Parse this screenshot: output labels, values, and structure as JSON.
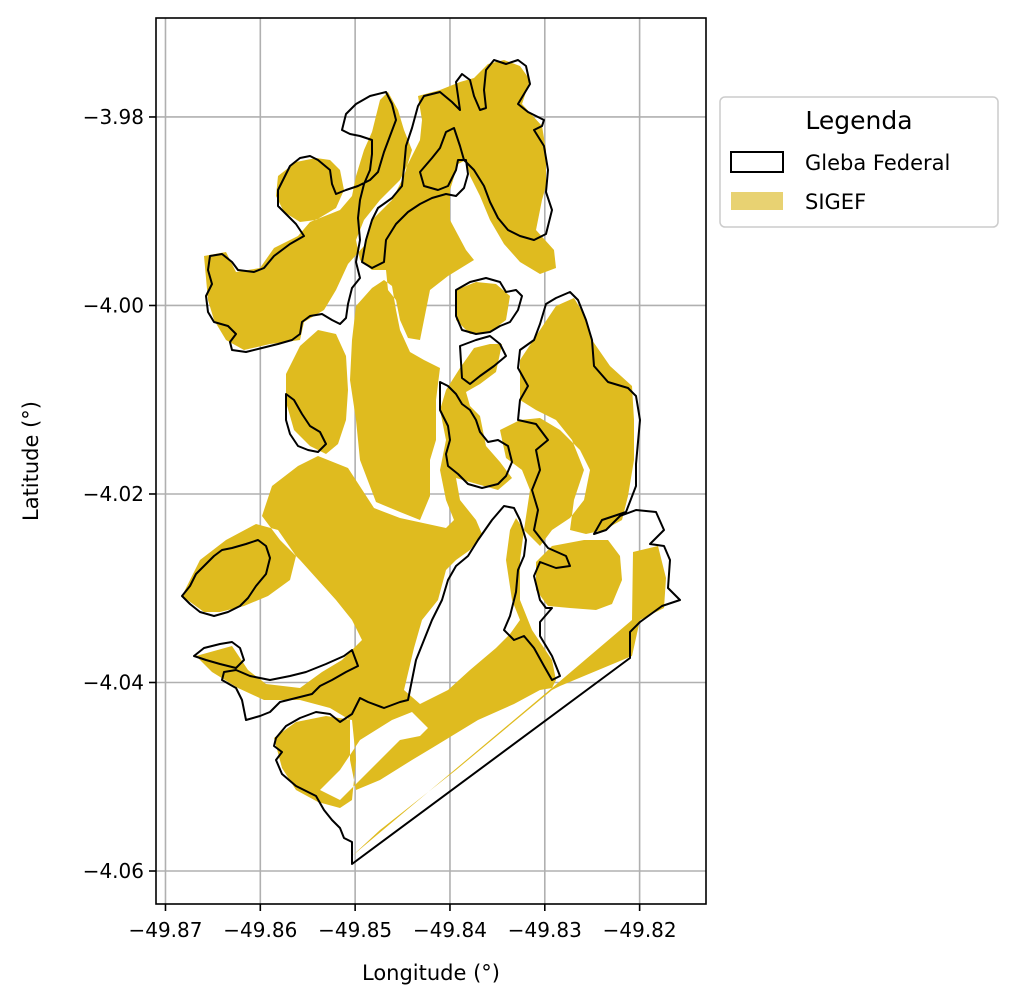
{
  "chart_data": {
    "type": "map",
    "xlabel": "Longitude (°)",
    "ylabel": "Latitude (°)",
    "xlim": [
      -49.871,
      -49.813
    ],
    "ylim": [
      -4.0635,
      -3.9695
    ],
    "x_ticks": [
      -49.87,
      -49.86,
      -49.85,
      -49.84,
      -49.83,
      -49.82
    ],
    "x_tick_labels": [
      "−49.87",
      "−49.86",
      "−49.85",
      "−49.84",
      "−49.83",
      "−49.82"
    ],
    "y_ticks": [
      -3.98,
      -4.0,
      -4.02,
      -4.04,
      -4.06
    ],
    "y_tick_labels": [
      "−3.98",
      "−4.00",
      "−4.02",
      "−4.04",
      "−4.06"
    ],
    "grid": true,
    "legend": {
      "title": "Legenda",
      "placement": "outside-upper-right",
      "entries": [
        {
          "label": "Gleba Federal",
          "style": "outline",
          "color": "#000000"
        },
        {
          "label": "SIGEF",
          "style": "fill",
          "color": "#dfbb1f"
        }
      ]
    },
    "layers": [
      {
        "name": "Gleba Federal",
        "style": "outline",
        "coordinates": [
          [
            -49.85,
            -4.059
          ],
          [
            -49.848,
            -4.0575
          ],
          [
            -49.846,
            -4.056
          ],
          [
            -49.842,
            -4.053
          ],
          [
            -49.838,
            -4.05
          ],
          [
            -49.834,
            -4.047
          ],
          [
            -49.83,
            -4.044
          ],
          [
            -49.826,
            -4.041
          ],
          [
            -49.822,
            -4.038
          ],
          [
            -49.8201,
            -4.0366
          ],
          [
            -49.8201,
            -4.034
          ],
          [
            -49.8215,
            -4.0325
          ],
          [
            -49.818,
            -4.0335
          ],
          [
            -49.817,
            -4.032
          ],
          [
            -49.8175,
            -4.029
          ],
          [
            -49.819,
            -4.0265
          ],
          [
            -49.8215,
            -4.026
          ],
          [
            -49.8205,
            -4.023
          ],
          [
            -49.8225,
            -4.0225
          ],
          [
            -49.8275,
            -4.026
          ],
          [
            -49.8285,
            -4.029
          ],
          [
            -49.8275,
            -4.0315
          ],
          [
            -49.8295,
            -4.0355
          ],
          [
            -49.8315,
            -4.0385
          ],
          [
            -49.8335,
            -4.0395
          ],
          [
            -49.836,
            -4.0395
          ],
          [
            -49.8355,
            -4.035
          ],
          [
            -49.836,
            -4.03
          ],
          [
            -49.8345,
            -4.026
          ],
          [
            -49.8355,
            -4.023
          ],
          [
            -49.8345,
            -4.0215
          ],
          [
            -49.838,
            -4.0235
          ],
          [
            -49.841,
            -4.0275
          ],
          [
            -49.845,
            -4.03
          ],
          [
            -49.846,
            -4.027
          ],
          [
            -49.8445,
            -4.0235
          ],
          [
            -49.8425,
            -4.021
          ],
          [
            -49.8405,
            -4.0205
          ],
          [
            -49.8375,
            -4.0185
          ],
          [
            -49.835,
            -4.019
          ],
          [
            -49.834,
            -4.015
          ],
          [
            -49.833,
            -4.011
          ],
          [
            -49.8345,
            -4.007
          ],
          [
            -49.8335,
            -4.004
          ],
          [
            -49.8305,
            -4.002
          ],
          [
            -49.8255,
            -4.0035
          ],
          [
            -49.8235,
            -4.0075
          ],
          [
            -49.823,
            -4.0125
          ],
          [
            -49.8205,
            -4.0145
          ],
          [
            -49.8205,
            -4.0165
          ],
          [
            -49.8255,
            -4.0195
          ],
          [
            -49.8285,
            -4.0225
          ],
          [
            -49.8305,
            -4.0235
          ],
          [
            -49.8325,
            -4.0255
          ],
          [
            -49.834,
            -4.028
          ],
          [
            -49.8345,
            -4.0315
          ],
          [
            -49.834,
            -4.0345
          ],
          [
            -49.836,
            -4.0385
          ],
          [
            -49.8375,
            -4.0385
          ],
          [
            -49.8385,
            -4.0355
          ],
          [
            -49.8375,
            -4.032
          ],
          [
            -49.838,
            -4.0275
          ],
          [
            -49.8415,
            -4.0255
          ],
          [
            -49.8445,
            -4.0215
          ],
          [
            -49.8495,
            -4.018
          ],
          [
            -49.8535,
            -4.0165
          ],
          [
            -49.8545,
            -4.012
          ],
          [
            -49.856,
            -4.01
          ],
          [
            -49.8565,
            -4.006
          ],
          [
            -49.8575,
            -4.003
          ],
          [
            -49.8645,
            -4.001
          ],
          [
            -49.8665,
            -3.999
          ],
          [
            -49.8645,
            -3.997
          ],
          [
            -49.8605,
            -3.995
          ],
          [
            -49.8575,
            -3.991
          ],
          [
            -49.8525,
            -3.988
          ],
          [
            -49.849,
            -3.9845
          ],
          [
            -49.8455,
            -3.9805
          ],
          [
            -49.8405,
            -3.978
          ],
          [
            -49.8365,
            -3.976
          ],
          [
            -49.8325,
            -3.9755
          ],
          [
            -49.8295,
            -3.977
          ],
          [
            -49.8255,
            -3.98
          ],
          [
            -49.826,
            -3.984
          ],
          [
            -49.8275,
            -3.988
          ],
          [
            -49.8285,
            -3.9935
          ],
          [
            -49.8305,
            -3.9975
          ],
          [
            -49.8345,
            -4.001
          ],
          [
            -49.8385,
            -4.003
          ],
          [
            -49.8415,
            -4.008
          ],
          [
            -49.8425,
            -4.012
          ],
          [
            -49.8445,
            -4.016
          ],
          [
            -49.8465,
            -4.0185
          ],
          [
            -49.8505,
            -4.021
          ],
          [
            -49.8545,
            -4.0235
          ],
          [
            -49.858,
            -4.0265
          ],
          [
            -49.8645,
            -4.03
          ],
          [
            -49.8655,
            -4.0335
          ],
          [
            -49.8655,
            -4.0365
          ],
          [
            -49.8635,
            -4.0395
          ],
          [
            -49.861,
            -4.0425
          ],
          [
            -49.858,
            -4.0435
          ],
          [
            -49.855,
            -4.0415
          ],
          [
            -49.852,
            -4.0435
          ],
          [
            -49.8505,
            -4.046
          ],
          [
            -49.8475,
            -4.047
          ],
          [
            -49.8445,
            -4.0495
          ],
          [
            -49.8415,
            -4.051
          ],
          [
            -49.839,
            -4.0515
          ],
          [
            -49.8355,
            -4.054
          ],
          [
            -49.8325,
            -4.057
          ],
          [
            -49.85,
            -4.059
          ]
        ]
      }
    ]
  }
}
